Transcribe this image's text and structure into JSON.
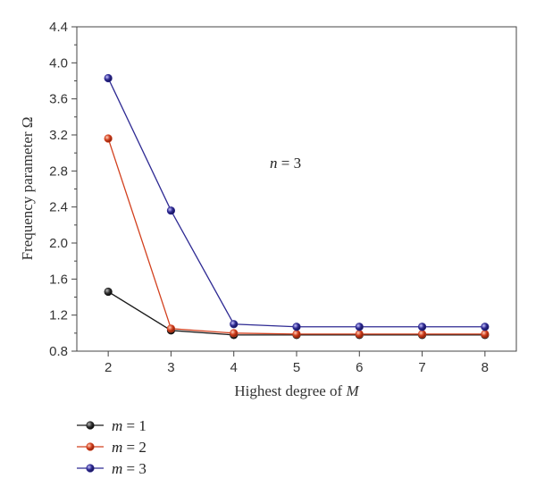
{
  "chart_data": {
    "type": "line",
    "x": [
      2,
      3,
      4,
      5,
      6,
      7,
      8
    ],
    "xlim": [
      1.5,
      8.5
    ],
    "ylim": [
      0.8,
      4.4
    ],
    "xticks": [
      "2",
      "3",
      "4",
      "5",
      "6",
      "7",
      "8"
    ],
    "yticks": [
      "0.8",
      "1.2",
      "1.6",
      "2.0",
      "2.4",
      "2.8",
      "3.2",
      "3.6",
      "4.0",
      "4.4"
    ],
    "ytick_values": [
      0.8,
      1.2,
      1.6,
      2.0,
      2.4,
      2.8,
      3.2,
      3.6,
      4.0,
      4.4
    ],
    "xlabel": {
      "text": "Highest degree of ",
      "var": "M"
    },
    "ylabel": "Frequency parameter Ω",
    "annotation": {
      "var": "n",
      "rest": " = 3"
    },
    "grid": false,
    "legend_position": "below",
    "series": [
      {
        "var": "m",
        "eq": " = 1",
        "color": "#1a1a1a",
        "values": [
          1.46,
          1.03,
          0.98,
          0.98,
          0.98,
          0.98,
          0.98
        ]
      },
      {
        "var": "m",
        "eq": " = 2",
        "color": "#d2401e",
        "values": [
          3.16,
          1.05,
          1.0,
          0.99,
          0.99,
          0.99,
          0.99
        ]
      },
      {
        "var": "m",
        "eq": " = 3",
        "color": "#2e2a93",
        "values": [
          3.83,
          2.36,
          1.1,
          1.07,
          1.07,
          1.07,
          1.07
        ]
      }
    ]
  }
}
